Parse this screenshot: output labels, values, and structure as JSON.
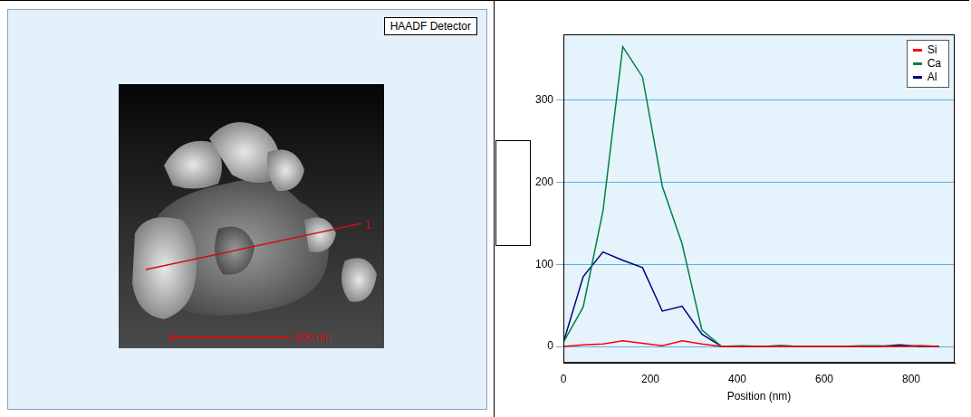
{
  "image_panel": {
    "detector_label": "HAADF Detector",
    "line_label": "1",
    "scale_bar_label": "500 nm"
  },
  "chart_data": {
    "type": "line",
    "xlabel": "Position (nm)",
    "x": [
      0,
      45.5,
      91,
      136.5,
      182,
      227.5,
      273,
      318.5,
      364,
      409.5,
      455,
      500.5,
      546,
      591.5,
      637,
      682.5,
      728,
      773.5,
      819,
      864.5
    ],
    "series": [
      {
        "name": "Si",
        "color": "#ff0000",
        "values": [
          0,
          2,
          3,
          7,
          4,
          1,
          7,
          3,
          0,
          0,
          0,
          0,
          0,
          0,
          0,
          0,
          0,
          0,
          1,
          0
        ]
      },
      {
        "name": "Ca",
        "color": "#008040",
        "values": [
          5,
          48,
          165,
          365,
          328,
          195,
          125,
          20,
          0,
          1,
          0,
          1,
          0,
          0,
          0,
          1,
          1,
          0,
          1,
          0
        ]
      },
      {
        "name": "Al",
        "color": "#000080",
        "values": [
          5,
          85,
          115,
          105,
          96,
          43,
          49,
          15,
          0,
          0,
          0,
          1,
          0,
          0,
          0,
          0,
          0,
          2,
          0,
          0
        ]
      }
    ],
    "xlim": [
      0,
      900
    ],
    "xticks": [
      0,
      200,
      400,
      600,
      800
    ],
    "ylim": [
      -20,
      380
    ],
    "yticks": [
      0,
      100,
      200,
      300
    ],
    "grid": true,
    "legend": "top-right"
  }
}
